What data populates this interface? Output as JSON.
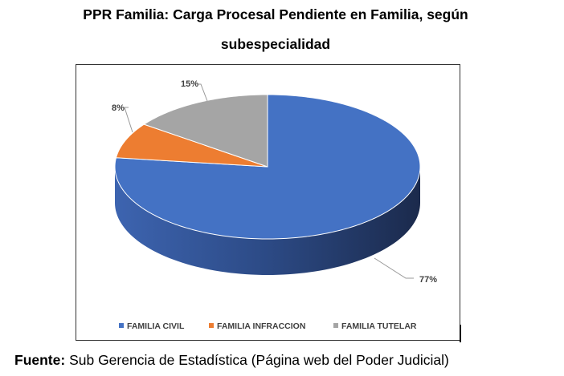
{
  "title_line1": "PPR Familia: Carga Procesal Pendiente en Familia, según",
  "title_line2": "subespecialidad",
  "source_label": "Fuente:",
  "source_text": " Sub Gerencia de Estadística (Página web del Poder Judicial)",
  "chart_data": {
    "type": "pie",
    "title": "PPR Familia: Carga Procesal Pendiente en Familia, según subespecialidad",
    "style": "3d",
    "categories": [
      "FAMILIA CIVIL",
      "FAMILIA INFRACCION",
      "FAMILIA TUTELAR"
    ],
    "values": [
      77,
      8,
      15
    ],
    "labels": [
      "77%",
      "8%",
      "15%"
    ],
    "colors": [
      "#4472c4",
      "#ed7d31",
      "#a5a5a5"
    ],
    "legend": "bottom"
  }
}
